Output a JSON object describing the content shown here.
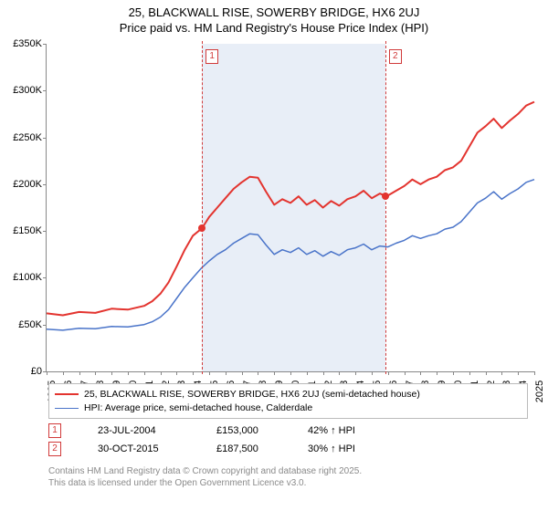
{
  "title": {
    "line1": "25, BLACKWALL RISE, SOWERBY BRIDGE, HX6 2UJ",
    "line2": "Price paid vs. HM Land Registry's House Price Index (HPI)",
    "fontsize": 13
  },
  "chart": {
    "type": "line",
    "background_color": "#ffffff",
    "shade_color": "#e8eef7",
    "axis_color": "#888888",
    "x": {
      "min": 1995,
      "max": 2025,
      "ticks": [
        1995,
        1996,
        1997,
        1998,
        1999,
        2000,
        2001,
        2002,
        2003,
        2004,
        2005,
        2006,
        2007,
        2008,
        2009,
        2010,
        2011,
        2012,
        2013,
        2014,
        2015,
        2016,
        2017,
        2018,
        2019,
        2020,
        2021,
        2022,
        2023,
        2024,
        2025
      ],
      "label_fontsize": 11
    },
    "y": {
      "min": 0,
      "max": 350000,
      "ticks": [
        0,
        50000,
        100000,
        150000,
        200000,
        250000,
        300000,
        350000
      ],
      "tick_labels": [
        "£0",
        "£50K",
        "£100K",
        "£150K",
        "£200K",
        "£250K",
        "£300K",
        "£350K"
      ],
      "label_fontsize": 11
    },
    "series": [
      {
        "id": "property",
        "label": "25, BLACKWALL RISE, SOWERBY BRIDGE, HX6 2UJ (semi-detached house)",
        "color": "#e3342f",
        "width": 2,
        "points": [
          [
            1995,
            62000
          ],
          [
            1996,
            60000
          ],
          [
            1997,
            63500
          ],
          [
            1998,
            62500
          ],
          [
            1999,
            67000
          ],
          [
            2000,
            66000
          ],
          [
            2001,
            70000
          ],
          [
            2001.5,
            75000
          ],
          [
            2002,
            83000
          ],
          [
            2002.5,
            95000
          ],
          [
            2003,
            112000
          ],
          [
            2003.5,
            130000
          ],
          [
            2004,
            145000
          ],
          [
            2004.56,
            153000
          ],
          [
            2005,
            165000
          ],
          [
            2005.5,
            175000
          ],
          [
            2006,
            185000
          ],
          [
            2006.5,
            195000
          ],
          [
            2007,
            202000
          ],
          [
            2007.5,
            208000
          ],
          [
            2008,
            207000
          ],
          [
            2008.5,
            192000
          ],
          [
            2009,
            178000
          ],
          [
            2009.5,
            184000
          ],
          [
            2010,
            180000
          ],
          [
            2010.5,
            187000
          ],
          [
            2011,
            178000
          ],
          [
            2011.5,
            183000
          ],
          [
            2012,
            175000
          ],
          [
            2012.5,
            182000
          ],
          [
            2013,
            177000
          ],
          [
            2013.5,
            184000
          ],
          [
            2014,
            187000
          ],
          [
            2014.5,
            193000
          ],
          [
            2015,
            185000
          ],
          [
            2015.5,
            190000
          ],
          [
            2015.83,
            187500
          ],
          [
            2016,
            188000
          ],
          [
            2016.5,
            193000
          ],
          [
            2017,
            198000
          ],
          [
            2017.5,
            205000
          ],
          [
            2018,
            200000
          ],
          [
            2018.5,
            205000
          ],
          [
            2019,
            208000
          ],
          [
            2019.5,
            215000
          ],
          [
            2020,
            218000
          ],
          [
            2020.5,
            225000
          ],
          [
            2021,
            240000
          ],
          [
            2021.5,
            255000
          ],
          [
            2022,
            262000
          ],
          [
            2022.5,
            270000
          ],
          [
            2023,
            260000
          ],
          [
            2023.5,
            268000
          ],
          [
            2024,
            275000
          ],
          [
            2024.5,
            284000
          ],
          [
            2025,
            288000
          ]
        ]
      },
      {
        "id": "hpi",
        "label": "HPI: Average price, semi-detached house, Calderdale",
        "color": "#4a74c9",
        "width": 1.5,
        "points": [
          [
            1995,
            45000
          ],
          [
            1996,
            44000
          ],
          [
            1997,
            46000
          ],
          [
            1998,
            45500
          ],
          [
            1999,
            48000
          ],
          [
            2000,
            47500
          ],
          [
            2001,
            50000
          ],
          [
            2001.5,
            53000
          ],
          [
            2002,
            58000
          ],
          [
            2002.5,
            66000
          ],
          [
            2003,
            78000
          ],
          [
            2003.5,
            90000
          ],
          [
            2004,
            100000
          ],
          [
            2004.5,
            110000
          ],
          [
            2005,
            118000
          ],
          [
            2005.5,
            125000
          ],
          [
            2006,
            130000
          ],
          [
            2006.5,
            137000
          ],
          [
            2007,
            142000
          ],
          [
            2007.5,
            147000
          ],
          [
            2008,
            146000
          ],
          [
            2008.5,
            135000
          ],
          [
            2009,
            125000
          ],
          [
            2009.5,
            130000
          ],
          [
            2010,
            127000
          ],
          [
            2010.5,
            132000
          ],
          [
            2011,
            125000
          ],
          [
            2011.5,
            129000
          ],
          [
            2012,
            123000
          ],
          [
            2012.5,
            128000
          ],
          [
            2013,
            124000
          ],
          [
            2013.5,
            130000
          ],
          [
            2014,
            132000
          ],
          [
            2014.5,
            136000
          ],
          [
            2015,
            130000
          ],
          [
            2015.5,
            134000
          ],
          [
            2016,
            133000
          ],
          [
            2016.5,
            137000
          ],
          [
            2017,
            140000
          ],
          [
            2017.5,
            145000
          ],
          [
            2018,
            142000
          ],
          [
            2018.5,
            145000
          ],
          [
            2019,
            147000
          ],
          [
            2019.5,
            152000
          ],
          [
            2020,
            154000
          ],
          [
            2020.5,
            160000
          ],
          [
            2021,
            170000
          ],
          [
            2021.5,
            180000
          ],
          [
            2022,
            185000
          ],
          [
            2022.5,
            192000
          ],
          [
            2023,
            184000
          ],
          [
            2023.5,
            190000
          ],
          [
            2024,
            195000
          ],
          [
            2024.5,
            202000
          ],
          [
            2025,
            205000
          ]
        ]
      }
    ],
    "sale_markers": [
      {
        "n": "1",
        "x": 2004.56,
        "y": 153000,
        "dot_color": "#e3342f"
      },
      {
        "n": "2",
        "x": 2015.83,
        "y": 187500,
        "dot_color": "#e3342f"
      }
    ],
    "shade": {
      "from": 2004.56,
      "to": 2015.83
    }
  },
  "legend": {
    "rows": [
      {
        "color": "#e3342f",
        "width": 2,
        "text": "25, BLACKWALL RISE, SOWERBY BRIDGE, HX6 2UJ (semi-detached house)"
      },
      {
        "color": "#4a74c9",
        "width": 1.5,
        "text": "HPI: Average price, semi-detached house, Calderdale"
      }
    ]
  },
  "sales": [
    {
      "n": "1",
      "date": "23-JUL-2004",
      "price": "£153,000",
      "pct": "42% ↑ HPI"
    },
    {
      "n": "2",
      "date": "30-OCT-2015",
      "price": "£187,500",
      "pct": "30% ↑ HPI"
    }
  ],
  "attribution": {
    "line1": "Contains HM Land Registry data © Crown copyright and database right 2025.",
    "line2": "This data is licensed under the Open Government Licence v3.0."
  }
}
